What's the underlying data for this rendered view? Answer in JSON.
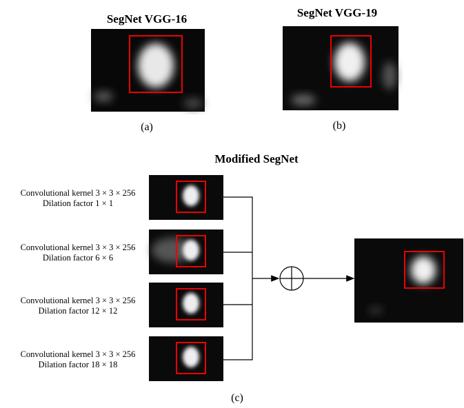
{
  "panels": [
    {
      "title": "SegNet VGG-16",
      "label": "(a)"
    },
    {
      "title": "SegNet VGG-19",
      "label": "(b)"
    }
  ],
  "modified": {
    "title": "Modified SegNet",
    "label": "(c)",
    "branches": [
      {
        "line1": "Convolutional kernel 3 × 3 × 256",
        "line2": "Dilation factor 1 × 1"
      },
      {
        "line1": "Convolutional kernel 3 × 3 × 256",
        "line2": "Dilation factor 6 × 6"
      },
      {
        "line1": "Convolutional kernel 3 × 3 × 256",
        "line2": "Dilation factor 12 × 12"
      },
      {
        "line1": "Convolutional kernel 3 × 3 × 256",
        "line2": "Dilation factor 18 × 18"
      }
    ]
  }
}
